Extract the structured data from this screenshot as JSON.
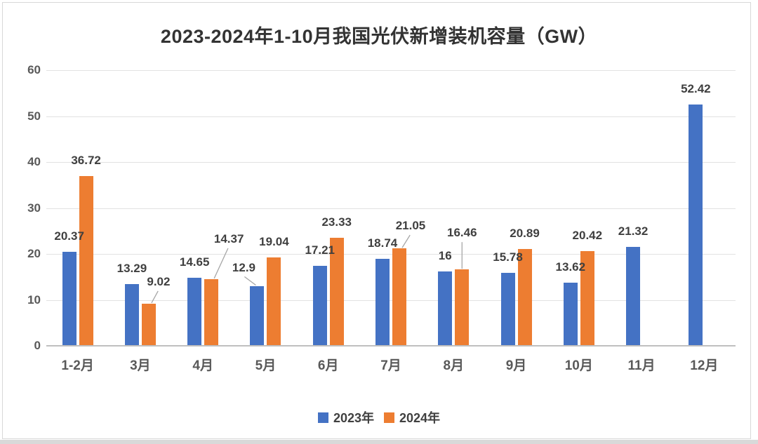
{
  "chart_data": {
    "type": "bar",
    "title": "2023-2024年1-10月我国光伏新增装机容量（GW）",
    "categories": [
      "1-2月",
      "3月",
      "4月",
      "5月",
      "6月",
      "7月",
      "8月",
      "9月",
      "10月",
      "11月",
      "12月"
    ],
    "series": [
      {
        "name": "2023年",
        "color": "#4472C4",
        "values": [
          20.37,
          13.29,
          14.65,
          12.9,
          17.21,
          18.74,
          16,
          15.78,
          13.62,
          21.32,
          52.42
        ]
      },
      {
        "name": "2024年",
        "color": "#ED7D31",
        "values": [
          36.72,
          9.02,
          14.37,
          19.04,
          23.33,
          21.05,
          16.46,
          20.89,
          20.42,
          null,
          null
        ]
      }
    ],
    "ylim": [
      0,
      60
    ],
    "yticks": [
      0,
      10,
      20,
      30,
      40,
      50,
      60
    ],
    "grid": true,
    "legend_position": "bottom",
    "colors": {
      "grid": "#e2e2e2",
      "axis": "#bfbfbf",
      "tick_text": "#595959",
      "data_label_text": "#3f3f3f",
      "leader_line": "#a6a6a6"
    },
    "label_layout": {
      "default_gap": 13,
      "overrides": {
        "s1i1": {
          "dx": 14,
          "gap": 22,
          "leader": true
        },
        "s1i2": {
          "dx": 25,
          "gap": 48,
          "leader": true
        },
        "s0i3": {
          "dx": -19,
          "gap": 17,
          "leader": true
        },
        "s1i5": {
          "dx": 16,
          "gap": 23,
          "leader": true
        },
        "s1i6": {
          "dx": 0,
          "gap": 43,
          "leader": true
        }
      }
    }
  }
}
